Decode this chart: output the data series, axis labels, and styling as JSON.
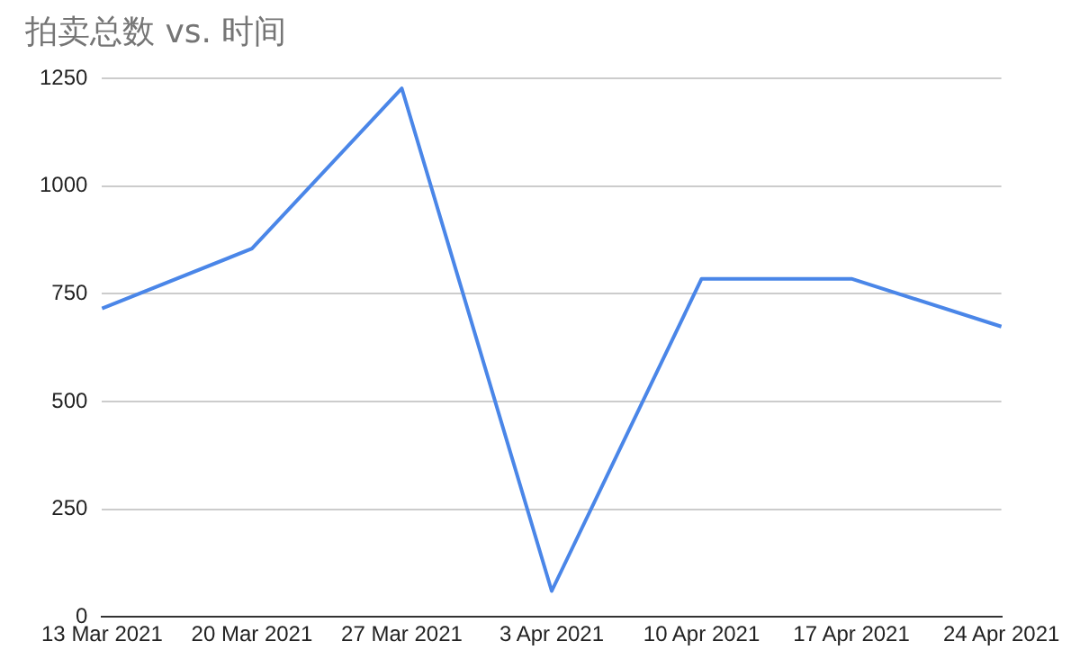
{
  "chart_data": {
    "type": "line",
    "title": "拍卖总数 vs. 时间",
    "categories": [
      "13 Mar 2021",
      "20 Mar 2021",
      "27 Mar 2021",
      "3 Apr 2021",
      "10 Apr 2021",
      "17 Apr 2021",
      "24 Apr 2021"
    ],
    "series": [
      {
        "color": "#4a86e8",
        "values": [
          716,
          855,
          1227,
          60,
          785,
          785,
          674
        ]
      }
    ],
    "ylim": [
      0,
      1250
    ],
    "yticks": [
      0,
      250,
      500,
      750,
      1000,
      1250
    ],
    "grid": "y",
    "marker": "none",
    "line_style": "solid"
  }
}
